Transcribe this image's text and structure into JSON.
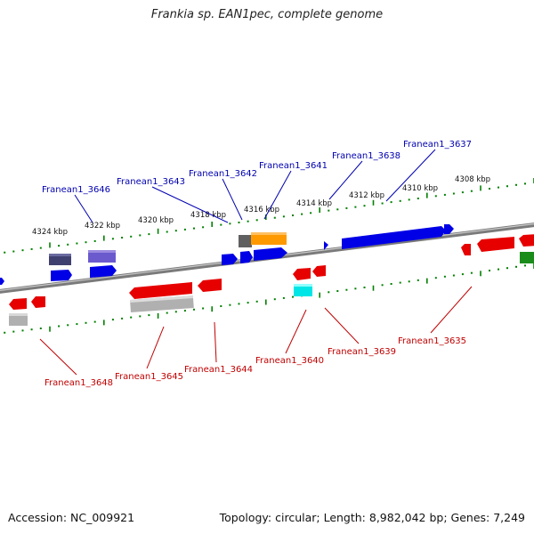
{
  "title": "Frankia sp. EAN1pec, complete genome",
  "footer": {
    "accession": "Accession: NC_009921",
    "summary": "Topology: circular; Length: 8,982,042 bp; Genes: 7,249"
  },
  "colors": {
    "forward_gene": "#0000e6",
    "reverse_gene": "#e60000",
    "backbone": "#808080",
    "tick": "#008000",
    "label_forward": "#0000b0",
    "label_reverse": "#c00000",
    "orange_gene": "#ff9900",
    "purple_gene": "#6a5acd",
    "dark_gene": "#404070",
    "cyan_gene": "#00e6e6",
    "grey_gene": "#b0b0b0",
    "green_gene": "#1a8c1a"
  },
  "kbp_ticks": [
    "4324 kbp",
    "4322 kbp",
    "4320 kbp",
    "4318 kbp",
    "4316 kbp",
    "4314 kbp",
    "4312 kbp",
    "4310 kbp",
    "4308 kbp"
  ],
  "gene_labels_top": [
    "Franean1_3646",
    "Franean1_3643",
    "Franean1_3642",
    "Franean1_3641",
    "Franean1_3638",
    "Franean1_3637"
  ],
  "gene_labels_bottom": [
    "Franean1_3648",
    "Franean1_3645",
    "Franean1_3644",
    "Franean1_3640",
    "Franean1_3639",
    "Franean1_3635"
  ]
}
